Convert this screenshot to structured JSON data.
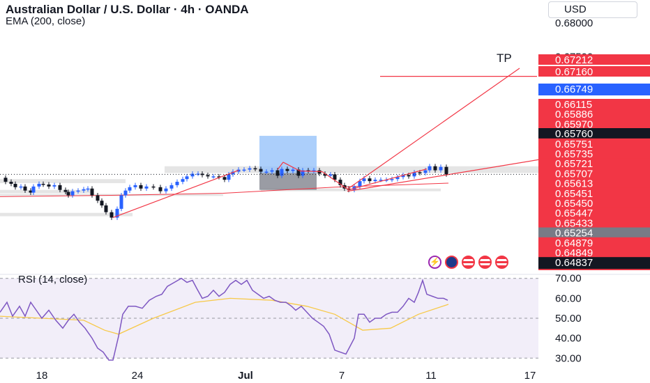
{
  "header": {
    "title": "Australian Dollar / U.S. Dollar · 4h · OANDA",
    "ema_label": "EMA (200, close)",
    "currency": "USD"
  },
  "rsi_label": "RSI (14, close)",
  "tp_label": "TP",
  "badges": [
    "flash-icon",
    "flag-au-icon",
    "flag-us-icon",
    "flag-us-icon",
    "flag-us-icon"
  ],
  "colors": {
    "up": "#2962ff",
    "down": "#131722",
    "trendline": "#f23645",
    "ema": "#f23645",
    "rsi": "#7e57c2",
    "rsi_ma": "#f7c948",
    "zone": "#e0e0e0",
    "profit_zone": "#90bff9",
    "loss_zone": "#787b86"
  },
  "chart_data": [
    {
      "type": "candlestick",
      "title": "Australian Dollar / U.S. Dollar · 4h · OANDA",
      "x_ticks": [
        "18",
        "24",
        "Jul",
        "7",
        "11",
        "17"
      ],
      "y_ticks": [
        0.68,
        0.675,
        0.67,
        0.665,
        0.66,
        0.655,
        0.65,
        0.645
      ],
      "ylim": [
        0.6428,
        0.6834
      ],
      "grid": false,
      "current_price": 0.6576,
      "price_labels": [
        {
          "value": 0.67212,
          "style": "red"
        },
        {
          "value": 0.6716,
          "style": "red"
        },
        {
          "value": 0.66749,
          "style": "blue"
        },
        {
          "value": 0.66115,
          "style": "red"
        },
        {
          "value": 0.65886,
          "style": "red"
        },
        {
          "value": 0.6597,
          "style": "red"
        },
        {
          "value": 0.6576,
          "style": "dark"
        },
        {
          "value": 0.65751,
          "style": "red"
        },
        {
          "value": 0.65735,
          "style": "red"
        },
        {
          "value": 0.65721,
          "style": "red"
        },
        {
          "value": 0.65707,
          "style": "red"
        },
        {
          "value": 0.65613,
          "style": "red"
        },
        {
          "value": 0.65451,
          "style": "red"
        },
        {
          "value": 0.6545,
          "style": "red"
        },
        {
          "value": 0.65447,
          "style": "red"
        },
        {
          "value": 0.65433,
          "style": "red"
        },
        {
          "value": 0.65254,
          "style": "grey"
        },
        {
          "value": 0.64879,
          "style": "red"
        },
        {
          "value": 0.64849,
          "style": "red"
        },
        {
          "value": 0.64837,
          "style": "dark"
        }
      ],
      "close_path": [
        [
          0,
          0.6571
        ],
        [
          8,
          0.6565
        ],
        [
          16,
          0.6562
        ],
        [
          22,
          0.6557
        ],
        [
          30,
          0.6558
        ],
        [
          36,
          0.6552
        ],
        [
          44,
          0.6549
        ],
        [
          48,
          0.6558
        ],
        [
          56,
          0.6562
        ],
        [
          62,
          0.6561
        ],
        [
          70,
          0.6558
        ],
        [
          78,
          0.656
        ],
        [
          86,
          0.6553
        ],
        [
          94,
          0.655
        ],
        [
          98,
          0.6545
        ],
        [
          104,
          0.6551
        ],
        [
          112,
          0.6552
        ],
        [
          120,
          0.6554
        ],
        [
          126,
          0.6555
        ],
        [
          132,
          0.6545
        ],
        [
          140,
          0.6537
        ],
        [
          146,
          0.653
        ],
        [
          152,
          0.652
        ],
        [
          160,
          0.6512
        ],
        [
          168,
          0.6525
        ],
        [
          174,
          0.6545
        ],
        [
          180,
          0.6552
        ],
        [
          186,
          0.6557
        ],
        [
          194,
          0.656
        ],
        [
          202,
          0.6555
        ],
        [
          210,
          0.6558
        ],
        [
          220,
          0.6557
        ],
        [
          230,
          0.6551
        ],
        [
          238,
          0.6555
        ],
        [
          246,
          0.656
        ],
        [
          254,
          0.6565
        ],
        [
          262,
          0.6569
        ],
        [
          268,
          0.6573
        ],
        [
          276,
          0.6577
        ],
        [
          284,
          0.6577
        ],
        [
          290,
          0.6575
        ],
        [
          298,
          0.6573
        ],
        [
          306,
          0.6573
        ],
        [
          314,
          0.6572
        ],
        [
          322,
          0.6568
        ],
        [
          328,
          0.6576
        ],
        [
          334,
          0.658
        ],
        [
          342,
          0.6583
        ],
        [
          350,
          0.6583
        ],
        [
          358,
          0.6585
        ],
        [
          366,
          0.6584
        ],
        [
          374,
          0.658
        ],
        [
          382,
          0.658
        ],
        [
          390,
          0.6582
        ],
        [
          398,
          0.6574
        ],
        [
          404,
          0.6584
        ],
        [
          412,
          0.6581
        ],
        [
          420,
          0.6583
        ],
        [
          428,
          0.6574
        ],
        [
          434,
          0.6582
        ],
        [
          442,
          0.6581
        ],
        [
          450,
          0.6582
        ],
        [
          458,
          0.6577
        ],
        [
          466,
          0.6574
        ],
        [
          474,
          0.6576
        ],
        [
          480,
          0.6568
        ],
        [
          488,
          0.656
        ],
        [
          494,
          0.6555
        ],
        [
          500,
          0.6553
        ],
        [
          508,
          0.6558
        ],
        [
          516,
          0.6566
        ],
        [
          522,
          0.657
        ],
        [
          530,
          0.6566
        ],
        [
          538,
          0.6568
        ],
        [
          546,
          0.6568
        ],
        [
          554,
          0.6568
        ],
        [
          562,
          0.6569
        ],
        [
          570,
          0.6572
        ],
        [
          578,
          0.6575
        ],
        [
          586,
          0.6573
        ],
        [
          594,
          0.6579
        ],
        [
          602,
          0.6578
        ],
        [
          610,
          0.6582
        ],
        [
          616,
          0.6588
        ],
        [
          624,
          0.6582
        ],
        [
          632,
          0.6587
        ],
        [
          640,
          0.6576
        ]
      ],
      "ema_line": [
        [
          0,
          0.6543
        ],
        [
          160,
          0.6545
        ],
        [
          320,
          0.6548
        ],
        [
          480,
          0.6557
        ],
        [
          643,
          0.6563
        ]
      ],
      "trendlines": [
        {
          "from": [
            162,
            0.6512
          ],
          "to": [
            342,
            0.6582
          ]
        },
        {
          "from": [
            398,
            0.6583
          ],
          "to": [
            406,
            0.6594
          ]
        },
        {
          "from": [
            406,
            0.6594
          ],
          "to": [
            430,
            0.6581
          ]
        },
        {
          "from": [
            430,
            0.6581
          ],
          "to": [
            462,
            0.658
          ]
        },
        {
          "from": [
            462,
            0.658
          ],
          "to": [
            500,
            0.6553
          ]
        },
        {
          "from": [
            500,
            0.6553
          ],
          "to": [
            612,
            0.6584
          ]
        },
        {
          "from": [
            498,
            0.6554
          ],
          "to": [
            745,
            0.6733
          ]
        },
        {
          "from": [
            498,
            0.6551
          ],
          "to": [
            774,
            0.6598
          ]
        },
        {
          "from": [
            545,
            0.6721
          ],
          "to": [
            770,
            0.6721
          ]
        }
      ],
      "zones": [
        {
          "x": [
            236,
            772
          ],
          "y": [
            0.6578,
            0.6588
          ]
        },
        {
          "x": [
            0,
            180
          ],
          "y": [
            0.6563,
            0.6569
          ]
        },
        {
          "x": [
            0,
            130
          ],
          "y": [
            0.6548,
            0.6553
          ]
        },
        {
          "x": [
            0,
            320
          ],
          "y": [
            0.6544,
            0.6547
          ]
        },
        {
          "x": [
            374,
            632
          ],
          "y": [
            0.6551,
            0.6555
          ]
        },
        {
          "x": [
            0,
            190
          ],
          "y": [
            0.6514,
            0.6519
          ]
        }
      ],
      "position": {
        "x": [
          372,
          454
        ],
        "entry": 0.6578,
        "take_profit": 0.6633,
        "stop": 0.6553
      }
    },
    {
      "type": "line",
      "title": "RSI (14, close)",
      "ylim": [
        28,
        72
      ],
      "y_ticks": [
        70,
        60,
        50,
        40,
        30
      ],
      "band": [
        30,
        70
      ],
      "series": [
        {
          "name": "RSI",
          "points": [
            [
              0,
              53
            ],
            [
              10,
              58
            ],
            [
              18,
              51
            ],
            [
              28,
              56
            ],
            [
              36,
              51
            ],
            [
              44,
              58
            ],
            [
              52,
              54
            ],
            [
              60,
              50
            ],
            [
              70,
              54
            ],
            [
              80,
              49
            ],
            [
              90,
              45
            ],
            [
              98,
              49
            ],
            [
              106,
              52
            ],
            [
              114,
              48
            ],
            [
              122,
              45
            ],
            [
              132,
              40
            ],
            [
              140,
              35
            ],
            [
              148,
              33
            ],
            [
              156,
              29
            ],
            [
              162,
              29
            ],
            [
              170,
              41
            ],
            [
              176,
              52
            ],
            [
              184,
              56
            ],
            [
              194,
              56
            ],
            [
              204,
              55
            ],
            [
              214,
              59
            ],
            [
              224,
              61
            ],
            [
              232,
              62
            ],
            [
              240,
              66
            ],
            [
              250,
              68
            ],
            [
              260,
              70
            ],
            [
              268,
              68
            ],
            [
              276,
              69
            ],
            [
              282,
              65
            ],
            [
              290,
              60
            ],
            [
              298,
              61
            ],
            [
              306,
              64
            ],
            [
              314,
              61
            ],
            [
              322,
              63
            ],
            [
              330,
              67
            ],
            [
              338,
              69
            ],
            [
              346,
              67
            ],
            [
              354,
              69
            ],
            [
              362,
              64
            ],
            [
              370,
              62
            ],
            [
              378,
              60
            ],
            [
              386,
              61
            ],
            [
              394,
              59
            ],
            [
              402,
              58
            ],
            [
              410,
              58
            ],
            [
              418,
              56
            ],
            [
              424,
              54
            ],
            [
              432,
              56
            ],
            [
              440,
              53
            ],
            [
              448,
              50
            ],
            [
              456,
              48
            ],
            [
              464,
              46
            ],
            [
              472,
              42
            ],
            [
              480,
              34
            ],
            [
              488,
              33
            ],
            [
              496,
              32
            ],
            [
              502,
              36
            ],
            [
              508,
              40
            ],
            [
              514,
              52
            ],
            [
              522,
              52
            ],
            [
              530,
              48
            ],
            [
              538,
              50
            ],
            [
              546,
              50
            ],
            [
              554,
              52
            ],
            [
              562,
              53
            ],
            [
              570,
              53
            ],
            [
              578,
              56
            ],
            [
              586,
              60
            ],
            [
              594,
              58
            ],
            [
              600,
              63
            ],
            [
              606,
              69
            ],
            [
              612,
              62
            ],
            [
              620,
              61
            ],
            [
              628,
              60
            ],
            [
              636,
              60
            ],
            [
              642,
              59
            ]
          ]
        },
        {
          "name": "RSI-based MA",
          "points": [
            [
              0,
              51
            ],
            [
              60,
              50
            ],
            [
              120,
              49
            ],
            [
              150,
              44
            ],
            [
              170,
              42
            ],
            [
              220,
              50
            ],
            [
              280,
              58
            ],
            [
              330,
              60
            ],
            [
              390,
              59
            ],
            [
              440,
              56
            ],
            [
              480,
              52
            ],
            [
              520,
              44
            ],
            [
              560,
              45
            ],
            [
              600,
              52
            ],
            [
              643,
              57
            ]
          ]
        }
      ]
    }
  ]
}
